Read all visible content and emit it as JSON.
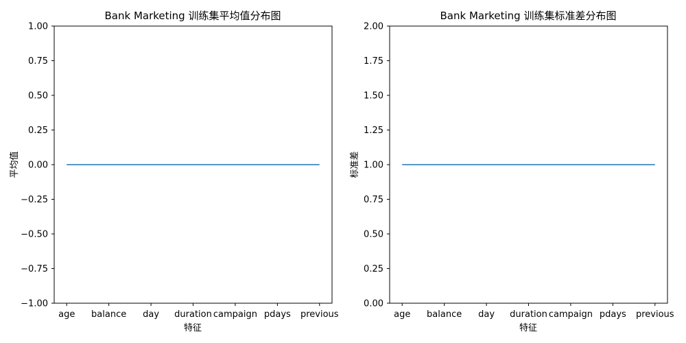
{
  "chart_data": [
    {
      "type": "line",
      "title": "Bank Marketing 训练集平均值分布图",
      "xlabel": "特征",
      "ylabel": "平均值",
      "categories": [
        "age",
        "balance",
        "day",
        "duration",
        "campaign",
        "pdays",
        "previous"
      ],
      "series": [
        {
          "values": [
            0.0,
            0.0,
            0.0,
            0.0,
            0.0,
            0.0,
            0.0
          ]
        }
      ],
      "ylim": [
        -1.0,
        1.0
      ],
      "yticks": [
        -1.0,
        -0.75,
        -0.5,
        -0.25,
        0.0,
        0.25,
        0.5,
        0.75,
        1.0
      ],
      "ytick_labels": [
        "−1.00",
        "−0.75",
        "−0.50",
        "−0.25",
        "0.00",
        "0.25",
        "0.50",
        "0.75",
        "1.00"
      ],
      "grid": false,
      "line_color": "#1f77b4"
    },
    {
      "type": "line",
      "title": "Bank Marketing 训练集标准差分布图",
      "xlabel": "特征",
      "ylabel": "标准差",
      "categories": [
        "age",
        "balance",
        "day",
        "duration",
        "campaign",
        "pdays",
        "previous"
      ],
      "series": [
        {
          "values": [
            1.0,
            1.0,
            1.0,
            1.0,
            1.0,
            1.0,
            1.0
          ]
        }
      ],
      "ylim": [
        0.0,
        2.0
      ],
      "yticks": [
        0.0,
        0.25,
        0.5,
        0.75,
        1.0,
        1.25,
        1.5,
        1.75,
        2.0
      ],
      "ytick_labels": [
        "0.00",
        "0.25",
        "0.50",
        "0.75",
        "1.00",
        "1.25",
        "1.50",
        "1.75",
        "2.00"
      ],
      "grid": false,
      "line_color": "#1f77b4"
    }
  ]
}
